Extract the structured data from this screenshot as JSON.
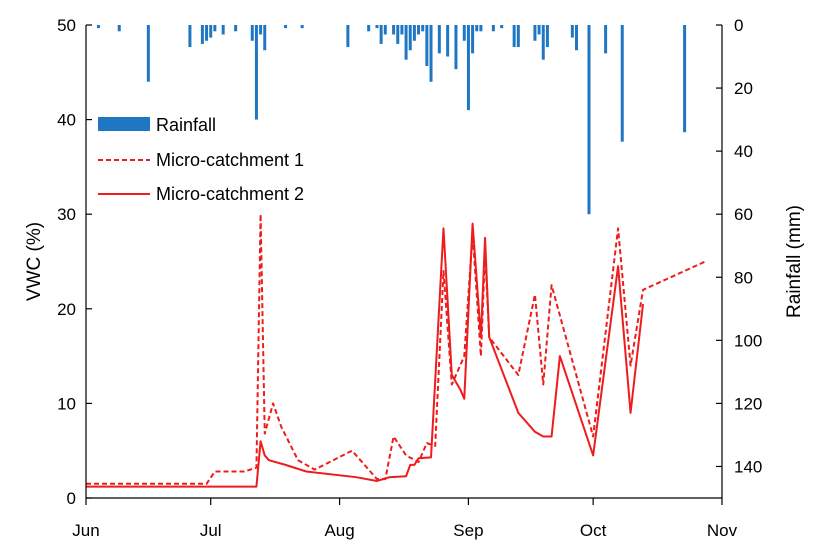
{
  "chart_data": {
    "type": "line",
    "x_axis": {
      "type": "date",
      "ticks": [
        "Jun",
        "Jul",
        "Aug",
        "Sep",
        "Oct",
        "Nov"
      ],
      "tick_dates": [
        "2000-06-01",
        "2000-07-01",
        "2000-08-01",
        "2000-09-01",
        "2000-10-01",
        "2000-11-01"
      ],
      "range": [
        "2000-06-01",
        "2000-11-01"
      ]
    },
    "y_left": {
      "label": "VWC (%)",
      "min": 0,
      "max": 50,
      "ticks": [
        0,
        10,
        20,
        30,
        40,
        50
      ]
    },
    "y_right": {
      "label": "Rainfall (mm)",
      "min": 0,
      "max": 150,
      "inverted": true,
      "ticks": [
        0,
        20,
        40,
        60,
        80,
        100,
        120,
        140
      ]
    },
    "legend": {
      "placement": "upper-left",
      "entries": [
        "Rainfall",
        "Micro-catchment 1",
        "Micro-catchment 2"
      ]
    },
    "grid": false,
    "series": [
      {
        "name": "Rainfall",
        "type": "bar",
        "axis": "right",
        "color": "#1f77c4",
        "points": [
          [
            "2000-06-04",
            1
          ],
          [
            "2000-06-09",
            2
          ],
          [
            "2000-06-16",
            18
          ],
          [
            "2000-06-26",
            7
          ],
          [
            "2000-06-29",
            6
          ],
          [
            "2000-06-30",
            5
          ],
          [
            "2000-07-01",
            4
          ],
          [
            "2000-07-02",
            2
          ],
          [
            "2000-07-04",
            3
          ],
          [
            "2000-07-07",
            2
          ],
          [
            "2000-07-11",
            5
          ],
          [
            "2000-07-12",
            30
          ],
          [
            "2000-07-13",
            3
          ],
          [
            "2000-07-14",
            8
          ],
          [
            "2000-07-19",
            1
          ],
          [
            "2000-07-23",
            1
          ],
          [
            "2000-08-03",
            7
          ],
          [
            "2000-08-08",
            2
          ],
          [
            "2000-08-10",
            1
          ],
          [
            "2000-08-11",
            6
          ],
          [
            "2000-08-12",
            3
          ],
          [
            "2000-08-14",
            3
          ],
          [
            "2000-08-15",
            6
          ],
          [
            "2000-08-16",
            3
          ],
          [
            "2000-08-17",
            11
          ],
          [
            "2000-08-18",
            8
          ],
          [
            "2000-08-19",
            5
          ],
          [
            "2000-08-20",
            3
          ],
          [
            "2000-08-21",
            2
          ],
          [
            "2000-08-22",
            13
          ],
          [
            "2000-08-23",
            18
          ],
          [
            "2000-08-25",
            9
          ],
          [
            "2000-08-27",
            10
          ],
          [
            "2000-08-29",
            14
          ],
          [
            "2000-08-31",
            5
          ],
          [
            "2000-09-01",
            27
          ],
          [
            "2000-09-02",
            9
          ],
          [
            "2000-09-03",
            2
          ],
          [
            "2000-09-04",
            2
          ],
          [
            "2000-09-07",
            2
          ],
          [
            "2000-09-09",
            1
          ],
          [
            "2000-09-12",
            7
          ],
          [
            "2000-09-13",
            7
          ],
          [
            "2000-09-17",
            5
          ],
          [
            "2000-09-18",
            3
          ],
          [
            "2000-09-19",
            11
          ],
          [
            "2000-09-20",
            7
          ],
          [
            "2000-09-26",
            4
          ],
          [
            "2000-09-27",
            8
          ],
          [
            "2000-09-30",
            60
          ],
          [
            "2000-10-04",
            9
          ],
          [
            "2000-10-08",
            37
          ],
          [
            "2000-10-23",
            34
          ]
        ]
      },
      {
        "name": "Micro-catchment 1",
        "type": "line",
        "axis": "left",
        "color": "#ee1c1c",
        "style": "dashed",
        "points": [
          [
            "2000-06-01",
            1.5
          ],
          [
            "2000-06-30",
            1.5
          ],
          [
            "2000-07-02",
            2.8
          ],
          [
            "2000-07-09",
            2.8
          ],
          [
            "2000-07-12",
            3.2
          ],
          [
            "2000-07-13",
            30.0
          ],
          [
            "2000-07-14",
            6.8
          ],
          [
            "2000-07-16",
            10.0
          ],
          [
            "2000-07-18",
            7.5
          ],
          [
            "2000-07-22",
            4.0
          ],
          [
            "2000-07-26",
            3.0
          ],
          [
            "2000-08-04",
            5.0
          ],
          [
            "2000-08-10",
            2.0
          ],
          [
            "2000-08-12",
            2.0
          ],
          [
            "2000-08-14",
            6.5
          ],
          [
            "2000-08-17",
            4.5
          ],
          [
            "2000-08-20",
            3.8
          ],
          [
            "2000-08-22",
            5.8
          ],
          [
            "2000-08-24",
            5.5
          ],
          [
            "2000-08-26",
            24.0
          ],
          [
            "2000-08-28",
            12.0
          ],
          [
            "2000-08-31",
            15.0
          ],
          [
            "2000-09-02",
            28.0
          ],
          [
            "2000-09-04",
            15.0
          ],
          [
            "2000-09-05",
            26.0
          ],
          [
            "2000-09-06",
            17.0
          ],
          [
            "2000-09-13",
            13.0
          ],
          [
            "2000-09-17",
            21.5
          ],
          [
            "2000-09-19",
            12.0
          ],
          [
            "2000-09-21",
            22.5
          ],
          [
            "2000-10-01",
            6.5
          ],
          [
            "2000-10-07",
            28.5
          ],
          [
            "2000-10-10",
            14.0
          ],
          [
            "2000-10-13",
            22.0
          ],
          [
            "2000-10-28",
            25.0
          ]
        ]
      },
      {
        "name": "Micro-catchment 2",
        "type": "line",
        "axis": "left",
        "color": "#ee1c1c",
        "style": "solid",
        "points": [
          [
            "2000-06-01",
            1.2
          ],
          [
            "2000-06-30",
            1.2
          ],
          [
            "2000-07-12",
            1.2
          ],
          [
            "2000-07-13",
            6.0
          ],
          [
            "2000-07-14",
            4.5
          ],
          [
            "2000-07-15",
            4.0
          ],
          [
            "2000-07-19",
            3.5
          ],
          [
            "2000-07-24",
            2.8
          ],
          [
            "2000-08-05",
            2.2
          ],
          [
            "2000-08-10",
            1.8
          ],
          [
            "2000-08-13",
            2.2
          ],
          [
            "2000-08-17",
            2.3
          ],
          [
            "2000-08-18",
            3.5
          ],
          [
            "2000-08-19",
            3.5
          ],
          [
            "2000-08-20",
            4.2
          ],
          [
            "2000-08-23",
            4.3
          ],
          [
            "2000-08-26",
            28.5
          ],
          [
            "2000-08-28",
            13.0
          ],
          [
            "2000-08-30",
            11.5
          ],
          [
            "2000-08-31",
            10.5
          ],
          [
            "2000-09-02",
            29.0
          ],
          [
            "2000-09-04",
            17.0
          ],
          [
            "2000-09-05",
            27.5
          ],
          [
            "2000-09-06",
            17.0
          ],
          [
            "2000-09-13",
            9.0
          ],
          [
            "2000-09-16",
            7.5
          ],
          [
            "2000-09-17",
            7.0
          ],
          [
            "2000-09-19",
            6.5
          ],
          [
            "2000-09-21",
            6.5
          ],
          [
            "2000-09-23",
            15.0
          ],
          [
            "2000-10-01",
            4.5
          ],
          [
            "2000-10-07",
            24.5
          ],
          [
            "2000-10-10",
            9.0
          ],
          [
            "2000-10-13",
            20.5
          ]
        ]
      }
    ]
  }
}
